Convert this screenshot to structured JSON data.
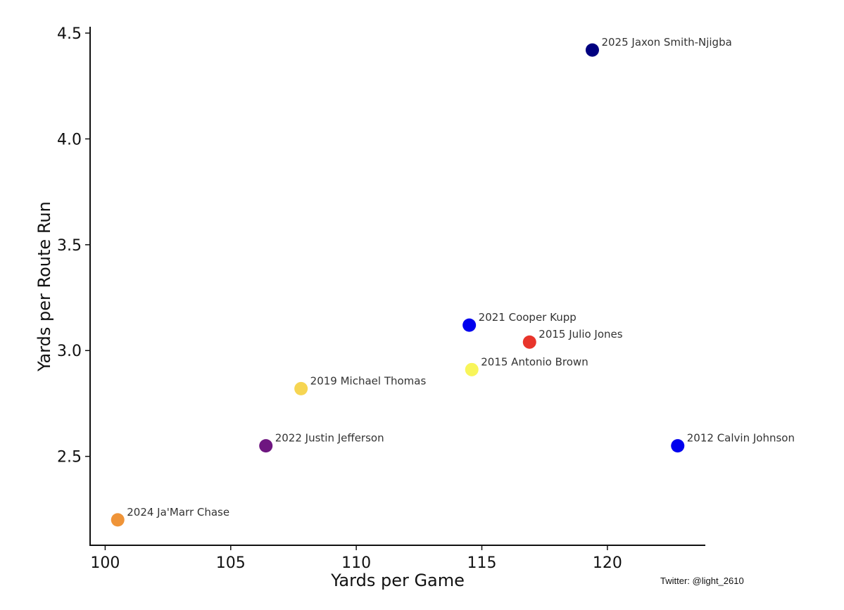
{
  "chart_data": {
    "type": "scatter",
    "title": "",
    "xlabel": "Yards per Game",
    "ylabel": "Yards per Route Run",
    "xlim": [
      99.4,
      123.9
    ],
    "ylim": [
      2.08,
      4.53
    ],
    "xticks": [
      100,
      105,
      110,
      115,
      120
    ],
    "yticks": [
      2.5,
      3.0,
      3.5,
      4.0,
      4.5
    ],
    "xtick_labels": [
      "100",
      "105",
      "110",
      "115",
      "120"
    ],
    "ytick_labels": [
      "2.5",
      "3.0",
      "3.5",
      "4.0",
      "4.5"
    ],
    "grid": false,
    "points": [
      {
        "label": "2025 Jaxon Smith-Njigba",
        "x": 119.4,
        "y": 4.42,
        "color": "#000080"
      },
      {
        "label": "2021 Cooper Kupp",
        "x": 114.5,
        "y": 3.12,
        "color": "#0000ee"
      },
      {
        "label": "2015 Julio Jones",
        "x": 116.9,
        "y": 3.04,
        "color": "#e8352b"
      },
      {
        "label": "2015 Antonio Brown",
        "x": 114.6,
        "y": 2.91,
        "color": "#f8f55a"
      },
      {
        "label": "2019 Michael Thomas",
        "x": 107.8,
        "y": 2.82,
        "color": "#f6d552"
      },
      {
        "label": "2022 Justin Jefferson",
        "x": 106.4,
        "y": 2.55,
        "color": "#6e1680"
      },
      {
        "label": "2012 Calvin Johnson",
        "x": 122.8,
        "y": 2.55,
        "color": "#0000ee"
      },
      {
        "label": "2024 Ja'Marr Chase",
        "x": 100.5,
        "y": 2.2,
        "color": "#ef9438"
      }
    ]
  },
  "credit": "Twitter: @light_2610"
}
